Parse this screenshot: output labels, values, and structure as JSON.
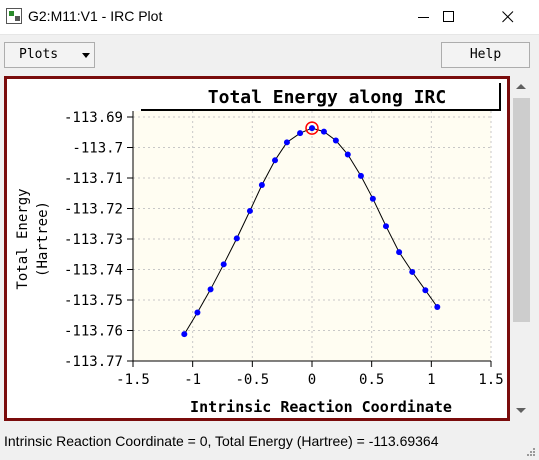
{
  "window": {
    "title": "G2:M11:V1 - IRC Plot"
  },
  "toolbar": {
    "plots_label": "Plots",
    "help_label": "Help"
  },
  "status": {
    "text": "Intrinsic Reaction Coordinate = 0, Total Energy (Hartree) = -113.69364"
  },
  "chart_data": {
    "type": "scatter",
    "title": "Total Energy along IRC",
    "xlabel": "Intrinsic Reaction Coordinate",
    "ylabel_lines": [
      "Total Energy",
      "(Hartree)"
    ],
    "xlim": [
      -1.5,
      1.5
    ],
    "ylim": [
      -113.77,
      -113.69
    ],
    "xticks": [
      -1.5,
      -1,
      -0.5,
      0,
      0.5,
      1,
      1.5
    ],
    "xtick_labels": [
      "-1.5",
      "-1",
      "-0.5",
      "0",
      "0.5",
      "1",
      "1.5"
    ],
    "yticks": [
      -113.69,
      -113.7,
      -113.71,
      -113.72,
      -113.73,
      -113.74,
      -113.75,
      -113.76,
      -113.77
    ],
    "ytick_labels": [
      "-113.69",
      "-113.7",
      "-113.71",
      "-113.72",
      "-113.73",
      "-113.74",
      "-113.75",
      "-113.76",
      "-113.77"
    ],
    "grid": true,
    "line_color": "#000000",
    "point_color": "#0000ff",
    "selected_marker_color": "#ff0000",
    "points": [
      {
        "x": -1.07,
        "y": -113.7612
      },
      {
        "x": -0.96,
        "y": -113.7541
      },
      {
        "x": -0.85,
        "y": -113.7465
      },
      {
        "x": -0.74,
        "y": -113.7383
      },
      {
        "x": -0.63,
        "y": -113.7298
      },
      {
        "x": -0.52,
        "y": -113.7208
      },
      {
        "x": -0.42,
        "y": -113.7123
      },
      {
        "x": -0.31,
        "y": -113.7042
      },
      {
        "x": -0.21,
        "y": -113.6983
      },
      {
        "x": -0.1,
        "y": -113.6953
      },
      {
        "x": 0,
        "y": -113.69364
      },
      {
        "x": 0.1,
        "y": -113.6948
      },
      {
        "x": 0.2,
        "y": -113.6977
      },
      {
        "x": 0.3,
        "y": -113.7023
      },
      {
        "x": 0.41,
        "y": -113.7093
      },
      {
        "x": 0.51,
        "y": -113.7168
      },
      {
        "x": 0.62,
        "y": -113.7258
      },
      {
        "x": 0.73,
        "y": -113.7343
      },
      {
        "x": 0.84,
        "y": -113.7408
      },
      {
        "x": 0.95,
        "y": -113.7468
      },
      {
        "x": 1.05,
        "y": -113.7523
      }
    ],
    "selected_index": 10
  }
}
